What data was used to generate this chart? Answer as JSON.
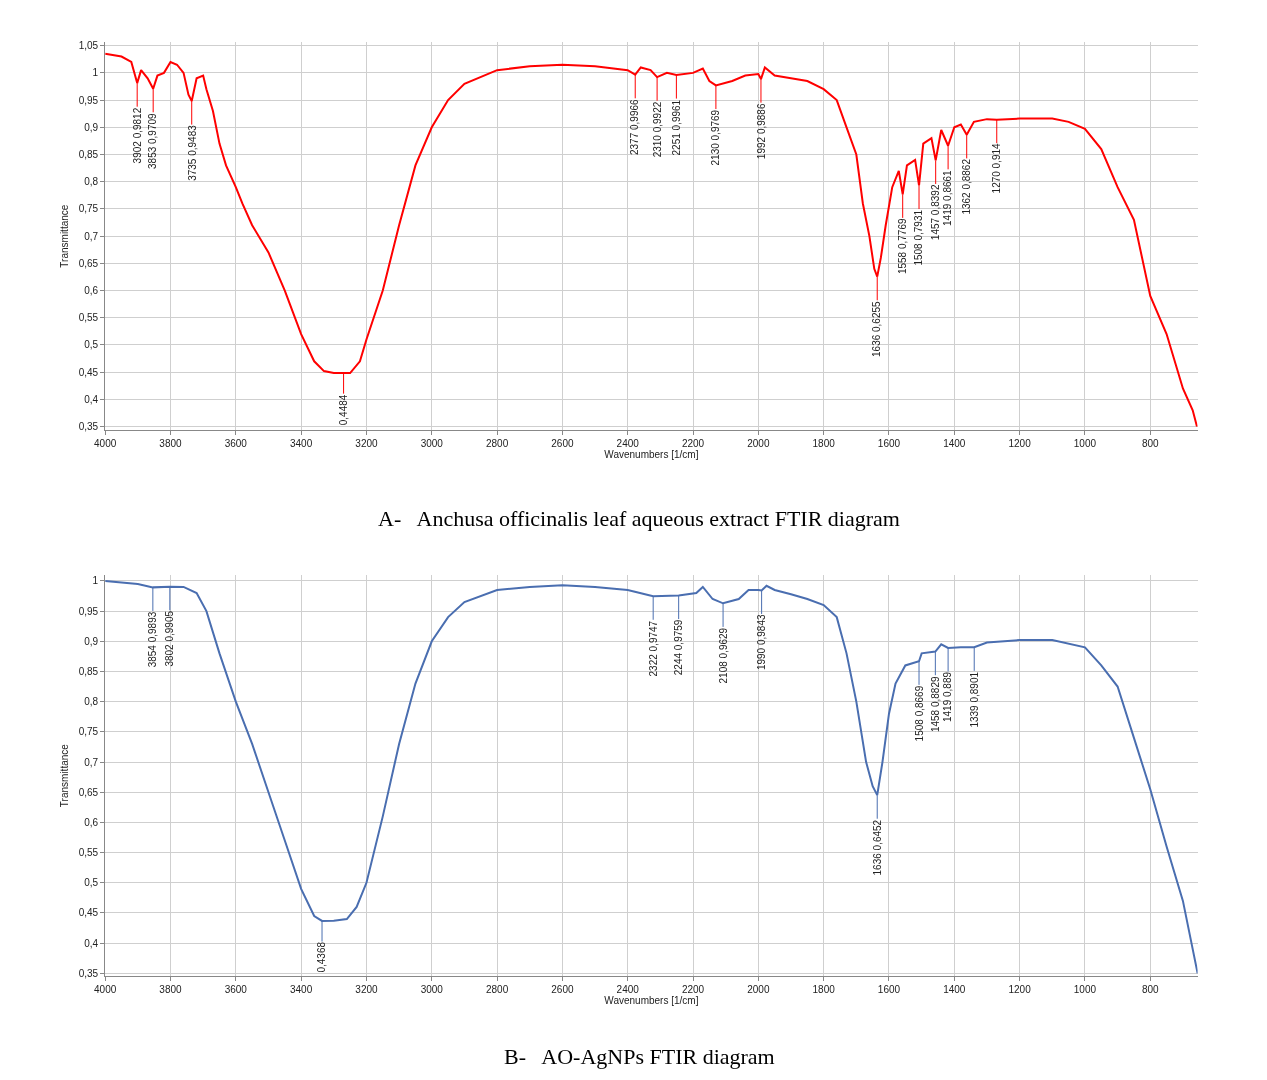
{
  "chart_data": [
    {
      "type": "line",
      "title": "A-   Anchusa officinalis leaf aqueous extract FTIR diagram",
      "xlabel": "Wavenumbers [1/cm]",
      "ylabel": "Transmittance",
      "x": [
        4000,
        3950,
        3920,
        3902,
        3890,
        3870,
        3853,
        3840,
        3820,
        3800,
        3780,
        3760,
        3745,
        3735,
        3720,
        3700,
        3690,
        3670,
        3650,
        3630,
        3600,
        3580,
        3550,
        3500,
        3450,
        3400,
        3360,
        3330,
        3300,
        3250,
        3220,
        3200,
        3150,
        3100,
        3050,
        3000,
        2950,
        2900,
        2800,
        2700,
        2600,
        2500,
        2400,
        2377,
        2360,
        2330,
        2310,
        2280,
        2251,
        2200,
        2170,
        2150,
        2130,
        2080,
        2040,
        2000,
        1992,
        1980,
        1950,
        1900,
        1850,
        1800,
        1760,
        1730,
        1700,
        1680,
        1660,
        1645,
        1636,
        1625,
        1610,
        1590,
        1570,
        1558,
        1545,
        1520,
        1508,
        1495,
        1470,
        1457,
        1440,
        1419,
        1400,
        1380,
        1362,
        1340,
        1300,
        1270,
        1200,
        1100,
        1050,
        1000,
        950,
        900,
        850,
        800,
        750,
        700,
        670,
        657
      ],
      "series": [
        {
          "color": "#ff0000",
          "values": [
            1.035,
            1.03,
            1.02,
            0.9812,
            1.005,
            0.99,
            0.9709,
            0.995,
            1.0,
            1.02,
            1.015,
            1.0,
            0.96,
            0.9483,
            0.99,
            0.995,
            0.97,
            0.93,
            0.87,
            0.83,
            0.79,
            0.76,
            0.72,
            0.67,
            0.6,
            0.52,
            0.47,
            0.452,
            0.4484,
            0.4484,
            0.47,
            0.51,
            0.6,
            0.72,
            0.83,
            0.9,
            0.95,
            0.98,
            1.005,
            1.012,
            1.015,
            1.012,
            1.005,
            0.9966,
            1.01,
            1.005,
            0.9922,
            1.0,
            0.9961,
            1.0,
            1.008,
            0.985,
            0.9769,
            0.985,
            0.995,
            0.998,
            0.9886,
            1.01,
            0.995,
            0.99,
            0.985,
            0.97,
            0.95,
            0.9,
            0.85,
            0.76,
            0.7,
            0.64,
            0.6255,
            0.66,
            0.72,
            0.79,
            0.82,
            0.7769,
            0.83,
            0.84,
            0.7931,
            0.87,
            0.88,
            0.8392,
            0.895,
            0.8661,
            0.9,
            0.905,
            0.8862,
            0.91,
            0.915,
            0.914,
            0.916,
            0.916,
            0.91,
            0.897,
            0.86,
            0.79,
            0.73,
            0.59,
            0.52,
            0.42,
            0.38,
            0.35
          ]
        }
      ],
      "xlim": [
        4000,
        655
      ],
      "xticks": [
        4000,
        3800,
        3600,
        3400,
        3200,
        3000,
        2800,
        2600,
        2400,
        2200,
        2000,
        1800,
        1600,
        1400,
        1200,
        1000,
        800
      ],
      "ylim": [
        0.343,
        1.057
      ],
      "yticks": [
        {
          "value": 0.35,
          "label": "0,35"
        },
        {
          "value": 0.4,
          "label": "0,4"
        },
        {
          "value": 0.45,
          "label": "0,45"
        },
        {
          "value": 0.5,
          "label": "0,5"
        },
        {
          "value": 0.55,
          "label": "0,55"
        },
        {
          "value": 0.6,
          "label": "0,6"
        },
        {
          "value": 0.65,
          "label": "0,65"
        },
        {
          "value": 0.7,
          "label": "0,7"
        },
        {
          "value": 0.75,
          "label": "0,75"
        },
        {
          "value": 0.8,
          "label": "0,8"
        },
        {
          "value": 0.85,
          "label": "0,85"
        },
        {
          "value": 0.9,
          "label": "0,9"
        },
        {
          "value": 0.95,
          "label": "0,95"
        },
        {
          "value": 1,
          "label": "1"
        },
        {
          "value": 1.05,
          "label": "1,05"
        }
      ],
      "grid": true,
      "marker": "none",
      "line_style": "solid",
      "annotations": [
        {
          "text": "3902 0,9812",
          "x": 3902,
          "y": 0.9812
        },
        {
          "text": "3853 0,9709",
          "x": 3853,
          "y": 0.9709
        },
        {
          "text": "3735 0,9483",
          "x": 3735,
          "y": 0.9483
        },
        {
          "text": "0,4484",
          "x": 3270,
          "y": 0.4484
        },
        {
          "text": "2377 0,9966",
          "x": 2377,
          "y": 0.9966
        },
        {
          "text": "2310 0,9922",
          "x": 2310,
          "y": 0.9922
        },
        {
          "text": "2251 0,9961",
          "x": 2251,
          "y": 0.9961
        },
        {
          "text": "2130 0,9769",
          "x": 2130,
          "y": 0.9769
        },
        {
          "text": "1992 0,9886",
          "x": 1992,
          "y": 0.9886
        },
        {
          "text": "1636 0,6255",
          "x": 1636,
          "y": 0.6255
        },
        {
          "text": "1558 0,7769",
          "x": 1558,
          "y": 0.7769
        },
        {
          "text": "1508 0,7931",
          "x": 1508,
          "y": 0.7931
        },
        {
          "text": "1457 0,8392",
          "x": 1457,
          "y": 0.8392
        },
        {
          "text": "1419 0,8661",
          "x": 1419,
          "y": 0.8661
        },
        {
          "text": "1362 0,8862",
          "x": 1362,
          "y": 0.8862
        },
        {
          "text": "1270 0,914",
          "x": 1270,
          "y": 0.914
        }
      ]
    },
    {
      "type": "line",
      "title": "B-   AO-AgNPs FTIR diagram",
      "xlabel": "Wavenumbers [1/cm]",
      "ylabel": "Transmittance",
      "x": [
        4000,
        3900,
        3854,
        3802,
        3760,
        3720,
        3690,
        3650,
        3600,
        3550,
        3500,
        3450,
        3400,
        3360,
        3336,
        3300,
        3260,
        3230,
        3200,
        3150,
        3100,
        3050,
        3000,
        2950,
        2900,
        2800,
        2700,
        2600,
        2500,
        2400,
        2322,
        2244,
        2190,
        2170,
        2140,
        2108,
        2060,
        2030,
        2000,
        1990,
        1975,
        1950,
        1900,
        1850,
        1800,
        1760,
        1730,
        1700,
        1670,
        1650,
        1636,
        1620,
        1600,
        1580,
        1550,
        1508,
        1500,
        1458,
        1440,
        1419,
        1380,
        1339,
        1300,
        1200,
        1100,
        1000,
        950,
        900,
        850,
        800,
        750,
        700,
        655
      ],
      "series": [
        {
          "color": "#4a6eb0",
          "values": [
            1.0,
            0.995,
            0.9893,
            0.9905,
            0.99,
            0.98,
            0.95,
            0.88,
            0.8,
            0.73,
            0.65,
            0.57,
            0.49,
            0.445,
            0.4368,
            0.437,
            0.44,
            0.46,
            0.5,
            0.61,
            0.73,
            0.83,
            0.9,
            0.94,
            0.965,
            0.985,
            0.99,
            0.993,
            0.99,
            0.985,
            0.9747,
            0.9759,
            0.98,
            0.99,
            0.97,
            0.9629,
            0.97,
            0.985,
            0.985,
            0.9843,
            0.992,
            0.985,
            0.978,
            0.97,
            0.96,
            0.94,
            0.88,
            0.8,
            0.7,
            0.66,
            0.6452,
            0.7,
            0.78,
            0.83,
            0.86,
            0.8669,
            0.88,
            0.8829,
            0.895,
            0.889,
            0.89,
            0.8901,
            0.898,
            0.902,
            0.902,
            0.89,
            0.86,
            0.825,
            0.74,
            0.655,
            0.56,
            0.47,
            0.35
          ]
        }
      ],
      "xlim": [
        4000,
        655
      ],
      "xticks": [
        4000,
        3800,
        3600,
        3400,
        3200,
        3000,
        2800,
        2600,
        2400,
        2200,
        2000,
        1800,
        1600,
        1400,
        1200,
        1000,
        800
      ],
      "ylim": [
        0.345,
        1.01
      ],
      "yticks": [
        {
          "value": 0.35,
          "label": "0,35"
        },
        {
          "value": 0.4,
          "label": "0,4"
        },
        {
          "value": 0.45,
          "label": "0,45"
        },
        {
          "value": 0.5,
          "label": "0,5"
        },
        {
          "value": 0.55,
          "label": "0,55"
        },
        {
          "value": 0.6,
          "label": "0,6"
        },
        {
          "value": 0.65,
          "label": "0,65"
        },
        {
          "value": 0.7,
          "label": "0,7"
        },
        {
          "value": 0.75,
          "label": "0,75"
        },
        {
          "value": 0.8,
          "label": "0,8"
        },
        {
          "value": 0.85,
          "label": "0,85"
        },
        {
          "value": 0.9,
          "label": "0,9"
        },
        {
          "value": 0.95,
          "label": "0,95"
        },
        {
          "value": 1,
          "label": "1"
        }
      ],
      "grid": true,
      "marker": "none",
      "line_style": "solid",
      "annotations": [
        {
          "text": "3854 0,9893",
          "x": 3854,
          "y": 0.9893
        },
        {
          "text": "3802 0,9905",
          "x": 3802,
          "y": 0.9905
        },
        {
          "text": "0,4368",
          "x": 3336,
          "y": 0.4368
        },
        {
          "text": "2322 0,9747",
          "x": 2322,
          "y": 0.9747
        },
        {
          "text": "2244 0,9759",
          "x": 2244,
          "y": 0.9759
        },
        {
          "text": "2108 0,9629",
          "x": 2108,
          "y": 0.9629
        },
        {
          "text": "1990 0,9843",
          "x": 1990,
          "y": 0.9843
        },
        {
          "text": "1636 0,6452",
          "x": 1636,
          "y": 0.6452
        },
        {
          "text": "1508 0,8669",
          "x": 1508,
          "y": 0.8669
        },
        {
          "text": "1458 0,8829",
          "x": 1458,
          "y": 0.8829
        },
        {
          "text": "1419 0,889",
          "x": 1419,
          "y": 0.889
        },
        {
          "text": "1339 0,8901",
          "x": 1339,
          "y": 0.8901
        }
      ]
    }
  ]
}
